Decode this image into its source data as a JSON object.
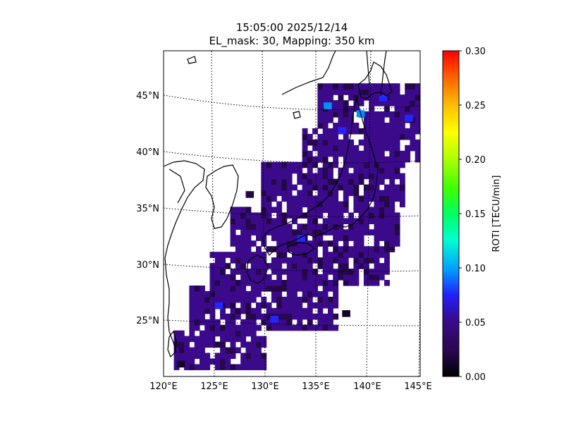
{
  "chart_data": {
    "type": "heatmap",
    "title_line1": "15:05:00 2025/12/14",
    "title_line2": "EL_mask: 30, Mapping: 350 km",
    "colorbar": {
      "label": "ROTI [TECU/min]",
      "range": [
        0.0,
        0.3
      ],
      "ticks": [
        "0.00",
        "0.05",
        "0.10",
        "0.15",
        "0.20",
        "0.25",
        "0.30"
      ],
      "colormap": [
        "#000000",
        "#3a0a6b",
        "#0000ff",
        "#00ffff",
        "#00ff00",
        "#ffff00",
        "#ff7f00",
        "#ff0000"
      ]
    },
    "map": {
      "lon_range": [
        120,
        145
      ],
      "lat_range": [
        20,
        49
      ],
      "lon_ticks": [
        "120°E",
        "125°E",
        "130°E",
        "135°E",
        "140°E",
        "145°E"
      ],
      "lat_ticks": [
        "25°N",
        "30°N",
        "35°N",
        "40°N",
        "45°N"
      ],
      "graticule": "dotted"
    },
    "roti_points": [
      {
        "lon": 135.6,
        "lat": 43.8,
        "value": 0.08
      },
      {
        "lon": 138.8,
        "lat": 43.1,
        "value": 0.09
      },
      {
        "lon": 137.0,
        "lat": 41.6,
        "value": 0.07
      },
      {
        "lon": 141.0,
        "lat": 44.5,
        "value": 0.06
      },
      {
        "lon": 143.5,
        "lat": 42.7,
        "value": 0.07
      },
      {
        "lon": 130.4,
        "lat": 24.8,
        "value": 0.07
      },
      {
        "lon": 137.4,
        "lat": 25.3,
        "value": 0.01
      },
      {
        "lon": 121.3,
        "lat": 20.8,
        "value": 0.01
      },
      {
        "lon": 128.0,
        "lat": 35.9,
        "value": 0.02
      },
      {
        "lon": 133.0,
        "lat": 32.0,
        "value": 0.06
      },
      {
        "lon": 125.0,
        "lat": 26.0,
        "value": 0.06
      }
    ]
  }
}
